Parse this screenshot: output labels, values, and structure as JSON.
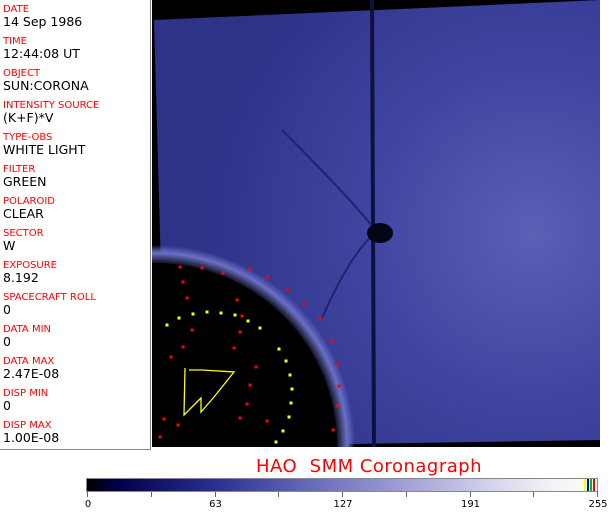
{
  "fields": [
    {
      "label": "DATE",
      "value": "14 Sep 1986"
    },
    {
      "label": "TIME",
      "value": "12:44:08 UT"
    },
    {
      "label": "OBJECT",
      "value": "SUN:CORONA"
    },
    {
      "label": "INTENSITY SOURCE",
      "value": "(K+F)*V"
    },
    {
      "label": "TYPE-OBS",
      "value": "WHITE LIGHT"
    },
    {
      "label": "FILTER",
      "value": "GREEN"
    },
    {
      "label": "POLAROID",
      "value": "CLEAR"
    },
    {
      "label": "SECTOR",
      "value": "W"
    },
    {
      "label": "EXPOSURE",
      "value": "8.192"
    },
    {
      "label": "SPACECRAFT ROLL",
      "value": "0"
    },
    {
      "label": "DATA MIN",
      "value": "0"
    },
    {
      "label": "DATA MAX",
      "value": "2.47E-08"
    },
    {
      "label": "DISP MIN",
      "value": "0"
    },
    {
      "label": "DISP MAX",
      "value": "1.00E-08"
    }
  ],
  "title": "HAO  SMM Coronagraph",
  "colorbar": {
    "ticks": [
      "0",
      "63",
      "127",
      "191",
      "255"
    ],
    "colormap": "black-blue-white",
    "top_colors": [
      "#ffff00",
      "#0000ff",
      "#00c000",
      "#ff0000"
    ]
  },
  "image": {
    "background": "#3a3f9a",
    "occulter": "#000000",
    "marker_colors": [
      "#ff0000",
      "#ffff00"
    ]
  }
}
